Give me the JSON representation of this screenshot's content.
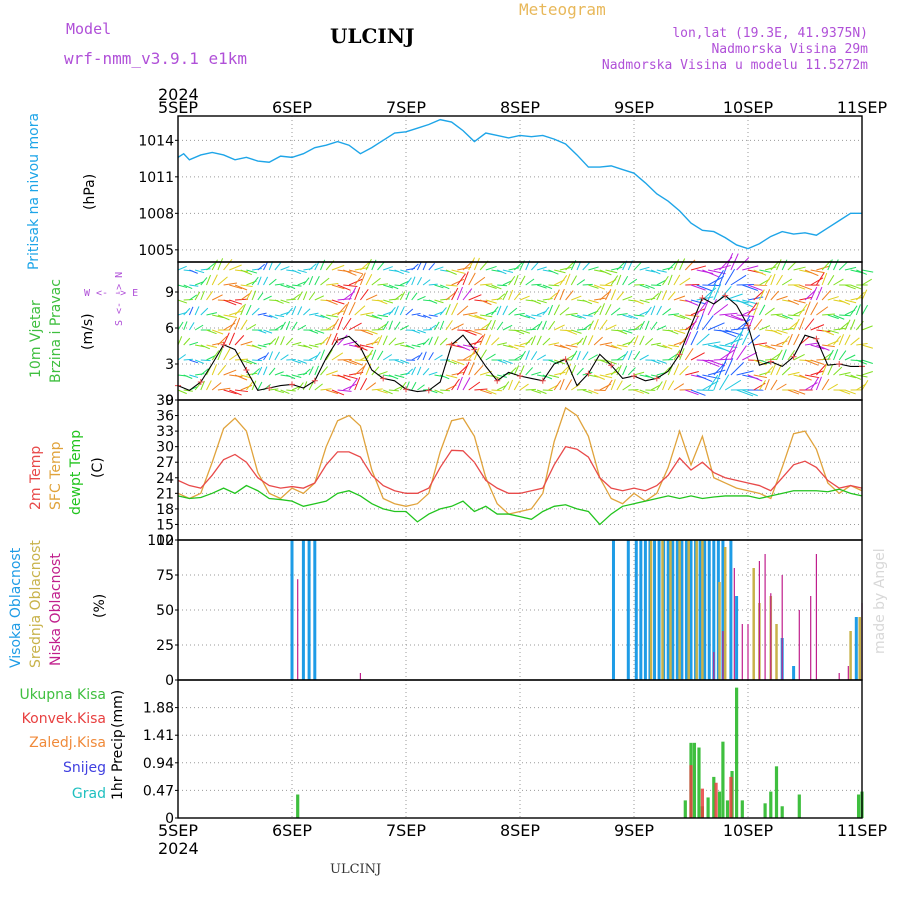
{
  "header": {
    "model_label": "Model",
    "model_name": "wrf-nmm_v3.9.1 e1km",
    "station": "ULCINJ",
    "product": "Meteogram",
    "coords": "lon,lat (19.3E, 41.9375N)",
    "elevation": "Nadmorska Visina 29m",
    "model_elevation": "Nadmorska Visina u modelu 11.5272m",
    "year_top": "2024",
    "year_bottom": "2024",
    "footer_station": "ULCINJ",
    "watermark": "made by Angel"
  },
  "colors": {
    "pressure": "#1ea5e8",
    "temp2m": "#e84a4a",
    "sfc": "#e0a33c",
    "dew": "#22c41e",
    "high": "#1e9ce6",
    "mid": "#c8b24a",
    "low": "#c01e8c",
    "rain": "#3fbf3f",
    "conv": "#e84040",
    "frz": "#f08a3a",
    "snow": "#4040e0",
    "hail": "#20c0c0",
    "purple": "#b050d8",
    "gold": "#e8b85a"
  },
  "chart_data": [
    {
      "type": "line",
      "x_ticks": [
        "5SEP",
        "6SEP",
        "7SEP",
        "8SEP",
        "9SEP",
        "10SEP",
        "11SEP"
      ],
      "ylabel": "Pritisak na nivou mora",
      "unit": "(hPa)",
      "yticks": [
        1005,
        1008,
        1011,
        1014
      ],
      "ylim": [
        1004,
        1016
      ],
      "grid": true,
      "series": [
        {
          "x": [
            0,
            0.05,
            0.1,
            0.2,
            0.3,
            0.4,
            0.5,
            0.6,
            0.7,
            0.8,
            0.9,
            1.0,
            1.1,
            1.2,
            1.3,
            1.4,
            1.5,
            1.6,
            1.7,
            1.8,
            1.9,
            2.0,
            2.1,
            2.2,
            2.3,
            2.4,
            2.5,
            2.6,
            2.7,
            2.8,
            2.9,
            3.0,
            3.1,
            3.2,
            3.3,
            3.4,
            3.5,
            3.6,
            3.7,
            3.8,
            3.9,
            4.0,
            4.1,
            4.2,
            4.3,
            4.4,
            4.5,
            4.6,
            4.7,
            4.8,
            4.9,
            5.0,
            5.1,
            5.2,
            5.3,
            5.4,
            5.5,
            5.6,
            5.7,
            5.8,
            5.9,
            6.0
          ],
          "values": [
            1012.6,
            1012.9,
            1012.4,
            1012.8,
            1013.0,
            1012.8,
            1012.4,
            1012.6,
            1012.3,
            1012.2,
            1012.7,
            1012.6,
            1012.9,
            1013.4,
            1013.6,
            1013.9,
            1013.6,
            1012.9,
            1013.4,
            1014.0,
            1014.6,
            1014.7,
            1015.0,
            1015.3,
            1015.7,
            1015.5,
            1014.8,
            1013.9,
            1014.6,
            1014.4,
            1014.2,
            1014.4,
            1014.3,
            1014.4,
            1014.1,
            1013.7,
            1012.8,
            1011.8,
            1011.8,
            1011.9,
            1011.6,
            1011.3,
            1010.5,
            1009.6,
            1009.0,
            1008.2,
            1007.2,
            1006.6,
            1006.5,
            1006.0,
            1005.4,
            1005.1,
            1005.5,
            1006.1,
            1006.5,
            1006.3,
            1006.4,
            1006.2,
            1006.8,
            1007.4,
            1008.0,
            1008.0
          ]
        }
      ]
    },
    {
      "type": "barbs",
      "ylabel": "10m Vjetar",
      "ylabel2": "Brzina i Pravac",
      "unit": "(m/s)",
      "compass": "W <- -> E",
      "compass2": "S <- -> N",
      "yticks": [
        0,
        3,
        6,
        9
      ],
      "ylim": [
        0,
        11.5
      ],
      "grid": true,
      "series": [
        {
          "name": "speed",
          "x": [
            0,
            0.1,
            0.2,
            0.3,
            0.4,
            0.5,
            0.6,
            0.7,
            0.8,
            0.9,
            1.0,
            1.1,
            1.2,
            1.3,
            1.4,
            1.5,
            1.6,
            1.7,
            1.8,
            1.9,
            2.0,
            2.1,
            2.2,
            2.3,
            2.4,
            2.5,
            2.6,
            2.7,
            2.8,
            2.9,
            3.0,
            3.1,
            3.2,
            3.3,
            3.4,
            3.5,
            3.6,
            3.7,
            3.8,
            3.9,
            4.0,
            4.1,
            4.2,
            4.3,
            4.4,
            4.5,
            4.6,
            4.7,
            4.8,
            4.9,
            5.0,
            5.1,
            5.2,
            5.3,
            5.4,
            5.5,
            5.6,
            5.7,
            5.8,
            5.9,
            6.0
          ],
          "values": [
            1.2,
            0.8,
            1.5,
            3.0,
            4.6,
            4.2,
            2.5,
            0.8,
            1.0,
            1.2,
            1.3,
            1.0,
            1.6,
            3.5,
            5.0,
            5.3,
            4.4,
            2.5,
            1.8,
            1.6,
            0.9,
            0.7,
            0.8,
            1.5,
            4.6,
            5.4,
            4.2,
            2.8,
            1.6,
            2.3,
            2.0,
            1.8,
            1.6,
            3.0,
            3.4,
            1.2,
            2.2,
            3.8,
            2.9,
            1.8,
            2.0,
            1.6,
            1.8,
            2.4,
            3.8,
            6.2,
            8.5,
            8.0,
            8.7,
            7.9,
            6.2,
            2.9,
            3.2,
            2.8,
            3.6,
            5.4,
            5.1,
            2.9,
            3.0,
            2.8,
            2.8
          ]
        }
      ]
    },
    {
      "type": "line",
      "ylabel_a": "2m Temp",
      "ylabel_b": "SFC Temp",
      "ylabel_c": "dewpt Temp",
      "unit": "(C)",
      "yticks": [
        12,
        15,
        18,
        21,
        24,
        27,
        30,
        33,
        36,
        39
      ],
      "ylim": [
        12,
        39
      ],
      "grid": true,
      "series": [
        {
          "name": "2m Temp",
          "x": [
            0,
            0.1,
            0.2,
            0.3,
            0.4,
            0.5,
            0.6,
            0.7,
            0.8,
            0.9,
            1.0,
            1.1,
            1.2,
            1.3,
            1.4,
            1.5,
            1.6,
            1.7,
            1.8,
            1.9,
            2.0,
            2.1,
            2.2,
            2.3,
            2.4,
            2.5,
            2.6,
            2.7,
            2.8,
            2.9,
            3.0,
            3.1,
            3.2,
            3.3,
            3.4,
            3.5,
            3.6,
            3.7,
            3.8,
            3.9,
            4.0,
            4.1,
            4.2,
            4.3,
            4.4,
            4.5,
            4.6,
            4.7,
            4.8,
            4.9,
            5.0,
            5.1,
            5.2,
            5.3,
            5.4,
            5.5,
            5.6,
            5.7,
            5.8,
            5.9,
            6.0
          ],
          "values": [
            23.5,
            22.5,
            22.0,
            24.5,
            27.5,
            28.5,
            27.0,
            24.0,
            22.5,
            22.0,
            22.3,
            22.0,
            23.0,
            26.5,
            29.0,
            29.0,
            28.0,
            24.5,
            22.5,
            21.5,
            21.0,
            21.0,
            22.0,
            26.0,
            29.3,
            29.2,
            27.0,
            23.5,
            22.0,
            21.0,
            21.0,
            21.5,
            22.0,
            26.5,
            30.0,
            29.5,
            28.0,
            24.0,
            22.0,
            21.5,
            22.0,
            21.5,
            22.5,
            24.5,
            27.8,
            25.5,
            27.0,
            25.0,
            24.0,
            23.5,
            23.0,
            22.5,
            21.5,
            24.0,
            26.5,
            27.2,
            26.0,
            23.5,
            22.0,
            22.5,
            22.0
          ]
        },
        {
          "name": "SFC Temp",
          "x": [
            0,
            0.1,
            0.2,
            0.3,
            0.4,
            0.5,
            0.6,
            0.7,
            0.8,
            0.9,
            1.0,
            1.1,
            1.2,
            1.3,
            1.4,
            1.5,
            1.6,
            1.7,
            1.8,
            1.9,
            2.0,
            2.1,
            2.2,
            2.3,
            2.4,
            2.5,
            2.6,
            2.7,
            2.8,
            2.9,
            3.0,
            3.1,
            3.2,
            3.3,
            3.4,
            3.5,
            3.6,
            3.7,
            3.8,
            3.9,
            4.0,
            4.1,
            4.2,
            4.3,
            4.4,
            4.5,
            4.6,
            4.7,
            4.8,
            4.9,
            5.0,
            5.1,
            5.2,
            5.3,
            5.4,
            5.5,
            5.6,
            5.7,
            5.8,
            5.9,
            6.0
          ],
          "values": [
            21.0,
            20.0,
            21.0,
            27.0,
            33.5,
            35.5,
            33.0,
            25.0,
            21.0,
            20.0,
            22.0,
            21.0,
            23.0,
            30.0,
            35.0,
            36.0,
            34.0,
            25.5,
            20.0,
            19.0,
            18.5,
            19.0,
            21.0,
            29.0,
            35.0,
            35.5,
            32.0,
            24.0,
            19.0,
            17.0,
            17.5,
            18.0,
            21.0,
            31.0,
            37.5,
            36.0,
            32.0,
            24.0,
            20.0,
            19.0,
            21.0,
            19.5,
            21.0,
            26.0,
            33.0,
            26.5,
            32.0,
            24.0,
            23.0,
            22.0,
            21.5,
            21.0,
            20.0,
            26.0,
            32.5,
            33.0,
            29.5,
            23.0,
            21.0,
            22.5,
            21.5
          ]
        },
        {
          "name": "dewpt Temp",
          "x": [
            0,
            0.1,
            0.2,
            0.3,
            0.4,
            0.5,
            0.6,
            0.7,
            0.8,
            0.9,
            1.0,
            1.1,
            1.2,
            1.3,
            1.4,
            1.5,
            1.6,
            1.7,
            1.8,
            1.9,
            2.0,
            2.1,
            2.2,
            2.3,
            2.4,
            2.5,
            2.6,
            2.7,
            2.8,
            2.9,
            3.0,
            3.1,
            3.2,
            3.3,
            3.4,
            3.5,
            3.6,
            3.7,
            3.8,
            3.9,
            4.0,
            4.1,
            4.2,
            4.3,
            4.4,
            4.5,
            4.6,
            4.7,
            4.8,
            4.9,
            5.0,
            5.1,
            5.2,
            5.3,
            5.4,
            5.5,
            5.6,
            5.7,
            5.8,
            5.9,
            6.0
          ],
          "values": [
            20.5,
            20.0,
            20.2,
            21.0,
            22.0,
            21.0,
            22.5,
            21.5,
            20.0,
            19.8,
            19.5,
            18.5,
            19.0,
            19.5,
            21.0,
            21.5,
            20.5,
            19.0,
            18.0,
            17.5,
            17.5,
            15.5,
            17.0,
            18.0,
            18.5,
            19.5,
            17.5,
            18.5,
            17.0,
            17.0,
            16.5,
            16.0,
            17.5,
            18.5,
            18.8,
            18.0,
            17.5,
            15.0,
            17.0,
            18.5,
            19.0,
            19.5,
            20.0,
            20.5,
            20.0,
            20.5,
            20.0,
            20.3,
            20.5,
            20.5,
            20.5,
            20.0,
            20.5,
            21.0,
            21.5,
            21.5,
            21.5,
            21.3,
            21.8,
            21.0,
            20.5
          ]
        }
      ]
    },
    {
      "type": "bar",
      "ylabel_a": "Visoka Oblacnost",
      "ylabel_b": "Srednja Oblacnost",
      "ylabel_c": "Niska Oblacnost",
      "unit": "(%)",
      "yticks": [
        0,
        25,
        50,
        75,
        100
      ],
      "ylim": [
        0,
        100
      ],
      "grid": true,
      "series": [
        {
          "name": "Visoka Oblacnost",
          "x": [
            1.0,
            1.1,
            1.15,
            1.2,
            3.82,
            3.95,
            4.02,
            4.06,
            4.1,
            4.14,
            4.18,
            4.22,
            4.26,
            4.3,
            4.34,
            4.38,
            4.42,
            4.46,
            4.5,
            4.54,
            4.58,
            4.62,
            4.66,
            4.7,
            4.74,
            4.78,
            4.85,
            4.9,
            5.3,
            5.4,
            5.95
          ],
          "values": [
            100,
            100,
            100,
            100,
            100,
            100,
            100,
            100,
            100,
            100,
            100,
            100,
            100,
            100,
            100,
            100,
            100,
            100,
            100,
            100,
            100,
            100,
            100,
            100,
            100,
            100,
            100,
            60,
            30,
            10,
            45
          ]
        },
        {
          "name": "Srednja Oblacnost",
          "x": [
            4.15,
            4.25,
            4.32,
            4.4,
            4.48,
            4.55,
            4.6,
            4.75,
            4.8,
            5.05,
            5.1,
            5.2,
            5.25,
            5.9,
            5.98
          ],
          "values": [
            100,
            100,
            100,
            100,
            100,
            100,
            100,
            70,
            95,
            80,
            55,
            60,
            40,
            35,
            45
          ]
        },
        {
          "name": "Niska Oblacnost",
          "x": [
            1.05,
            1.6,
            4.7,
            4.78,
            4.88,
            4.95,
            5.0,
            5.1,
            5.15,
            5.2,
            5.3,
            5.45,
            5.55,
            5.6,
            5.8,
            5.88,
            6.0
          ],
          "values": [
            72,
            5,
            20,
            35,
            80,
            40,
            40,
            85,
            90,
            62,
            75,
            50,
            60,
            90,
            5,
            10,
            55
          ]
        }
      ]
    },
    {
      "type": "bar",
      "ylabel": "1hr Precip",
      "unit": "(mm)",
      "legend": [
        "Ukupna Kisa",
        "Konvek.Kisa",
        "Zaledj.Kisa",
        "Snijeg",
        "Grad"
      ],
      "yticks": [
        0,
        0.47,
        0.94,
        1.41,
        1.88
      ],
      "ylim": [
        0,
        2.35
      ],
      "grid": true,
      "series": [
        {
          "name": "Ukupna Kisa",
          "x": [
            1.05,
            4.45,
            4.5,
            4.53,
            4.57,
            4.6,
            4.65,
            4.7,
            4.75,
            4.78,
            4.82,
            4.86,
            4.9,
            4.95,
            5.15,
            5.2,
            5.25,
            5.3,
            5.45,
            5.97,
            6.0
          ],
          "values": [
            0.4,
            0.3,
            1.28,
            1.28,
            1.2,
            0.2,
            0.35,
            0.7,
            0.45,
            1.3,
            0.3,
            0.8,
            2.22,
            0.3,
            0.25,
            0.45,
            0.88,
            0.2,
            0.4,
            0.4,
            0.45
          ]
        },
        {
          "name": "Konvek.Kisa",
          "x": [
            4.5,
            4.6,
            4.72,
            4.85
          ],
          "values": [
            0.9,
            0.5,
            0.6,
            0.7
          ]
        }
      ]
    }
  ]
}
